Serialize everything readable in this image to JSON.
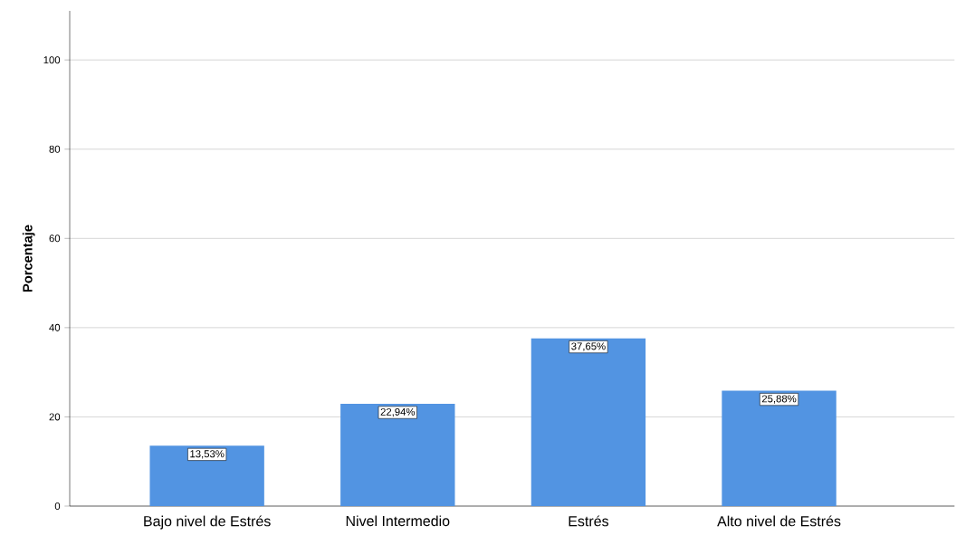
{
  "chart_data": {
    "type": "bar",
    "ylabel": "Porcentaje",
    "categories": [
      "Bajo nivel de Estrés",
      "Nivel Intermedio",
      "Estrés",
      "Alto nivel de Estrés"
    ],
    "values": [
      13.53,
      22.94,
      37.65,
      25.88
    ],
    "value_labels": [
      "13,53%",
      "22,94%",
      "37,65%",
      "25,88%"
    ],
    "color": "#5294e2",
    "ylim": [
      0,
      111
    ],
    "yticks": [
      0,
      20,
      40,
      60,
      80,
      100
    ],
    "grid": "y"
  }
}
